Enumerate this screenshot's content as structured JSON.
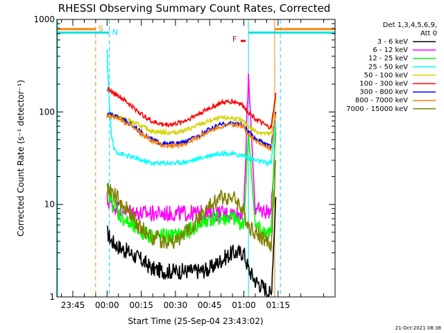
{
  "chart_data": {
    "type": "line",
    "title": "RHESSI Observing Summary Count Rates, Corrected",
    "xlabel": "Start Time (25-Sep-04 23:43:02)",
    "ylabel": "Corrected Count Rate (s⁻¹ detector⁻¹)",
    "ylog": true,
    "ylim": [
      1,
      1000
    ],
    "yticks": [
      {
        "v": 1,
        "label": "1"
      },
      {
        "v": 10,
        "label": "10"
      },
      {
        "v": 100,
        "label": "100"
      },
      {
        "v": 1000,
        "label": "1000"
      }
    ],
    "xlim": [
      -22,
      100
    ],
    "xticks": [
      {
        "v": -15,
        "label": "23:45"
      },
      {
        "v": 0,
        "label": "00:00"
      },
      {
        "v": 15,
        "label": "00:15"
      },
      {
        "v": 30,
        "label": "00:30"
      },
      {
        "v": 45,
        "label": "00:45"
      },
      {
        "v": 60,
        "label": "01:00"
      },
      {
        "v": 75,
        "label": "01:15"
      }
    ],
    "legend_title": [
      "Det 1,3,4,5,6,9,",
      "Att 0"
    ],
    "legend_position": "right",
    "series": [
      {
        "name": "3 - 6 keV",
        "color": "#000000",
        "x": [
          0,
          2,
          5,
          10,
          15,
          20,
          25,
          30,
          35,
          40,
          45,
          50,
          55,
          58,
          60,
          62,
          65,
          70,
          72,
          74
        ],
        "y": [
          5,
          4,
          3.5,
          3,
          2.5,
          2,
          1.9,
          1.9,
          1.9,
          1.9,
          2,
          2.5,
          3,
          3,
          3,
          2,
          1.5,
          1.2,
          1.05,
          12
        ]
      },
      {
        "name": "6 - 12 keV",
        "color": "#ff00ff",
        "x": [
          0,
          2,
          5,
          10,
          15,
          20,
          25,
          30,
          35,
          40,
          45,
          50,
          55,
          58,
          60,
          62,
          65,
          70,
          72,
          74
        ],
        "y": [
          11,
          10,
          9,
          8.5,
          8,
          8,
          8,
          8,
          8,
          8,
          8,
          8,
          8,
          8,
          8.5,
          250,
          8.5,
          8.5,
          8.5,
          60
        ]
      },
      {
        "name": "12 - 25 keV",
        "color": "#00ff00",
        "x": [
          0,
          2,
          5,
          10,
          15,
          20,
          25,
          30,
          35,
          40,
          45,
          50,
          55,
          58,
          60,
          62,
          65,
          70,
          72,
          74
        ],
        "y": [
          14,
          11,
          8,
          6,
          5,
          4.5,
          4.5,
          4.5,
          5,
          6,
          7,
          7,
          7,
          6.5,
          6,
          60,
          6,
          5,
          5,
          70
        ]
      },
      {
        "name": "25 - 50 keV",
        "color": "#00ffff",
        "x": [
          0,
          1,
          2,
          3,
          5,
          10,
          15,
          20,
          25,
          30,
          35,
          40,
          45,
          50,
          55,
          58,
          60,
          62,
          65,
          70,
          72,
          74
        ],
        "y": [
          450,
          120,
          55,
          40,
          36,
          33,
          30,
          28,
          28,
          28,
          29,
          31,
          34,
          36,
          35,
          34,
          34,
          32,
          30,
          28,
          28,
          80
        ]
      },
      {
        "name": "50 - 100 keV",
        "color": "#d4d400",
        "x": [
          0,
          2,
          5,
          10,
          15,
          20,
          25,
          30,
          35,
          40,
          45,
          50,
          55,
          58,
          60,
          62,
          65,
          70,
          72,
          74
        ],
        "y": [
          92,
          92,
          88,
          80,
          70,
          62,
          60,
          60,
          64,
          72,
          80,
          86,
          86,
          82,
          78,
          70,
          62,
          58,
          58,
          140
        ]
      },
      {
        "name": "100 - 300 keV",
        "color": "#ff0000",
        "x": [
          0,
          2,
          5,
          10,
          15,
          20,
          25,
          30,
          35,
          40,
          45,
          50,
          55,
          58,
          60,
          62,
          65,
          70,
          72,
          74
        ],
        "y": [
          180,
          165,
          150,
          120,
          95,
          78,
          73,
          74,
          82,
          95,
          110,
          125,
          130,
          125,
          115,
          100,
          85,
          70,
          68,
          160
        ]
      },
      {
        "name": "300 - 800 keV",
        "color": "#0000ff",
        "x": [
          0,
          2,
          5,
          10,
          15,
          20,
          25,
          30,
          35,
          40,
          45,
          50,
          55,
          58,
          60,
          62,
          65,
          70,
          72,
          74
        ],
        "y": [
          95,
          92,
          88,
          75,
          60,
          50,
          45,
          45,
          48,
          55,
          65,
          73,
          76,
          74,
          70,
          60,
          52,
          44,
          42,
          100
        ]
      },
      {
        "name": "800 - 7000 keV",
        "color": "#ff8000",
        "x": [
          0,
          2,
          5,
          10,
          15,
          20,
          25,
          30,
          35,
          40,
          45,
          50,
          55,
          58,
          60,
          62,
          65,
          70,
          72,
          74
        ],
        "y": [
          90,
          90,
          86,
          72,
          58,
          48,
          43,
          43,
          46,
          53,
          62,
          70,
          73,
          72,
          68,
          58,
          50,
          42,
          40,
          95
        ]
      },
      {
        "name": "7000 - 15000 keV",
        "color": "#808000",
        "x": [
          0,
          2,
          5,
          10,
          15,
          20,
          25,
          30,
          35,
          40,
          45,
          50,
          55,
          58,
          60,
          62,
          65,
          70,
          72,
          74
        ],
        "y": [
          15,
          14,
          11,
          8,
          5.5,
          4.5,
          4,
          4,
          5,
          7,
          9.5,
          12,
          12,
          10,
          8,
          6,
          5,
          4,
          3.5,
          30
        ]
      }
    ],
    "annotations": [
      {
        "label": "S",
        "color": "#ff8000",
        "x": -5,
        "line_style": "dashed"
      },
      {
        "label": "N",
        "color": "#00e0e0",
        "x": 1,
        "line_style": "dashed"
      },
      {
        "label": "F",
        "color": "#e00000",
        "x": 58,
        "line_style": "marker"
      }
    ],
    "timestamp": "21-Oct-2021 08:38"
  }
}
